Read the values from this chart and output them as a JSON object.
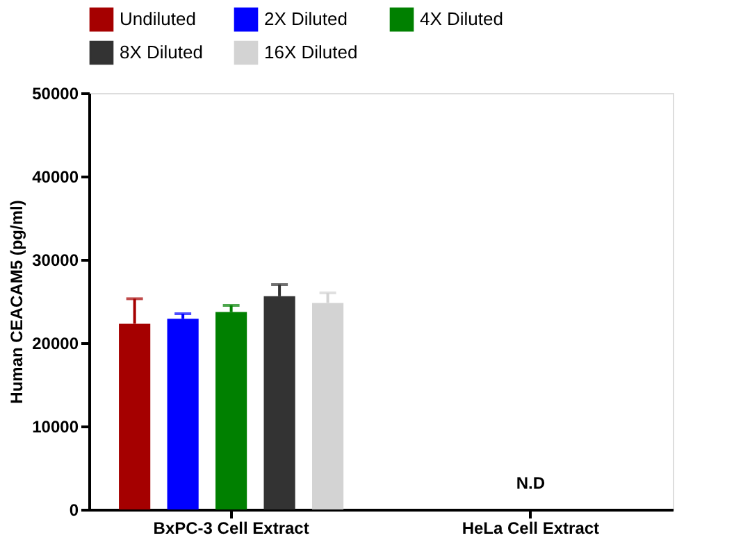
{
  "chart_data": {
    "type": "bar",
    "ylabel": "Human CEACAM5 (pg/ml)",
    "categories": [
      "BxPC-3 Cell Extract",
      "HeLa Cell Extract"
    ],
    "series": [
      {
        "name": "Undiluted",
        "color": "#a50000",
        "values": [
          22300,
          null
        ],
        "errors": [
          [
            22300,
            25300
          ],
          null
        ]
      },
      {
        "name": "2X Diluted",
        "color": "#0000ff",
        "values": [
          22900,
          null
        ],
        "errors": [
          [
            22900,
            23500
          ],
          null
        ]
      },
      {
        "name": "4X Diluted",
        "color": "#008000",
        "values": [
          23700,
          null
        ],
        "errors": [
          [
            23700,
            24500
          ],
          null
        ]
      },
      {
        "name": "8X Diluted",
        "color": "#333333",
        "values": [
          25600,
          null
        ],
        "errors": [
          [
            25600,
            27000
          ],
          null
        ]
      },
      {
        "name": "16X Diluted",
        "color": "#d3d3d3",
        "values": [
          24800,
          null
        ],
        "errors": [
          [
            24800,
            26000
          ],
          null
        ]
      }
    ],
    "ylim": [
      0,
      50000
    ],
    "yticks": [
      0,
      10000,
      20000,
      30000,
      40000,
      50000
    ],
    "annotations": [
      "N.D"
    ],
    "grid": false,
    "legend": "top"
  }
}
